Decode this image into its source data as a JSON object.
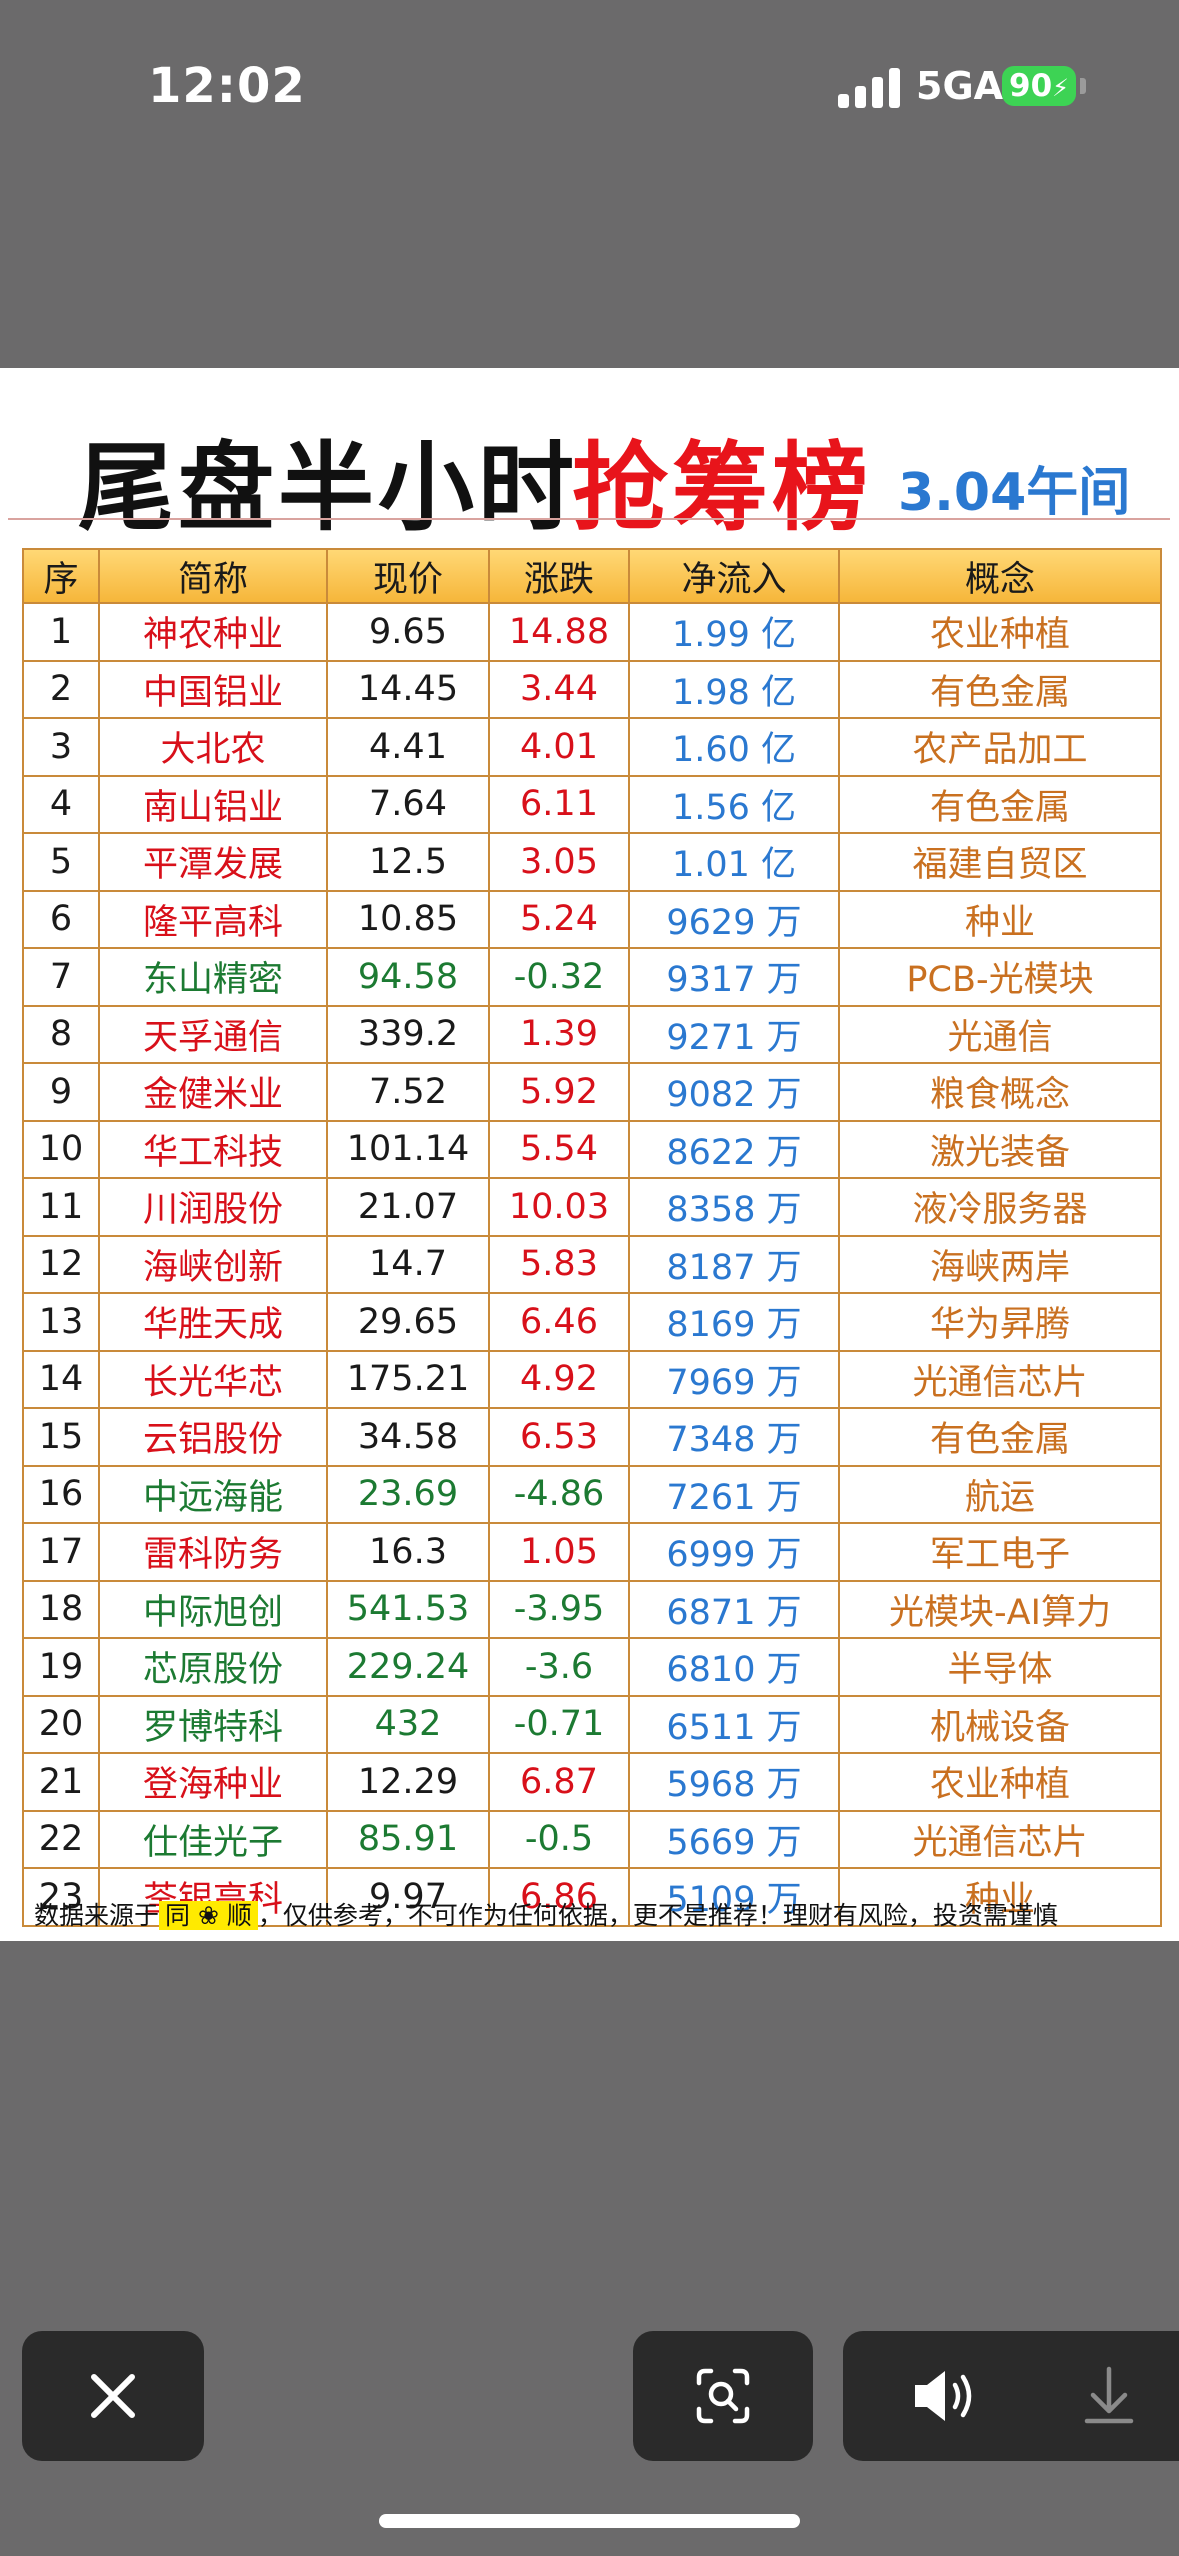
{
  "status_bar": {
    "time": "12:02",
    "network": "5GA",
    "battery": "90"
  },
  "image": {
    "title_part1": "尾盘半小时",
    "title_part2": "抢筹榜",
    "date": "3.04午间",
    "columns": [
      "序",
      "简称",
      "现价",
      "涨跌",
      "净流入",
      "概念"
    ],
    "rows": [
      {
        "idx": "1",
        "name": "神农种业",
        "price": "9.65",
        "change": "14.88",
        "flow": "1.99 亿",
        "concept": "农业种植",
        "up": true
      },
      {
        "idx": "2",
        "name": "中国铝业",
        "price": "14.45",
        "change": "3.44",
        "flow": "1.98 亿",
        "concept": "有色金属",
        "up": true
      },
      {
        "idx": "3",
        "name": "大北农",
        "price": "4.41",
        "change": "4.01",
        "flow": "1.60 亿",
        "concept": "农产品加工",
        "up": true
      },
      {
        "idx": "4",
        "name": "南山铝业",
        "price": "7.64",
        "change": "6.11",
        "flow": "1.56 亿",
        "concept": "有色金属",
        "up": true
      },
      {
        "idx": "5",
        "name": "平潭发展",
        "price": "12.5",
        "change": "3.05",
        "flow": "1.01 亿",
        "concept": "福建自贸区",
        "up": true
      },
      {
        "idx": "6",
        "name": "隆平高科",
        "price": "10.85",
        "change": "5.24",
        "flow": "9629 万",
        "concept": "种业",
        "up": true
      },
      {
        "idx": "7",
        "name": "东山精密",
        "price": "94.58",
        "change": "-0.32",
        "flow": "9317 万",
        "concept": "PCB-光模块",
        "up": false
      },
      {
        "idx": "8",
        "name": "天孚通信",
        "price": "339.2",
        "change": "1.39",
        "flow": "9271 万",
        "concept": "光通信",
        "up": true
      },
      {
        "idx": "9",
        "name": "金健米业",
        "price": "7.52",
        "change": "5.92",
        "flow": "9082 万",
        "concept": "粮食概念",
        "up": true
      },
      {
        "idx": "10",
        "name": "华工科技",
        "price": "101.14",
        "change": "5.54",
        "flow": "8622 万",
        "concept": "激光装备",
        "up": true
      },
      {
        "idx": "11",
        "name": "川润股份",
        "price": "21.07",
        "change": "10.03",
        "flow": "8358 万",
        "concept": "液冷服务器",
        "up": true
      },
      {
        "idx": "12",
        "name": "海峡创新",
        "price": "14.7",
        "change": "5.83",
        "flow": "8187 万",
        "concept": "海峡两岸",
        "up": true
      },
      {
        "idx": "13",
        "name": "华胜天成",
        "price": "29.65",
        "change": "6.46",
        "flow": "8169 万",
        "concept": "华为昇腾",
        "up": true
      },
      {
        "idx": "14",
        "name": "长光华芯",
        "price": "175.21",
        "change": "4.92",
        "flow": "7969 万",
        "concept": "光通信芯片",
        "up": true
      },
      {
        "idx": "15",
        "name": "云铝股份",
        "price": "34.58",
        "change": "6.53",
        "flow": "7348 万",
        "concept": "有色金属",
        "up": true
      },
      {
        "idx": "16",
        "name": "中远海能",
        "price": "23.69",
        "change": "-4.86",
        "flow": "7261 万",
        "concept": "航运",
        "up": false
      },
      {
        "idx": "17",
        "name": "雷科防务",
        "price": "16.3",
        "change": "1.05",
        "flow": "6999 万",
        "concept": "军工电子",
        "up": true
      },
      {
        "idx": "18",
        "name": "中际旭创",
        "price": "541.53",
        "change": "-3.95",
        "flow": "6871 万",
        "concept": "光模块-AI算力",
        "up": false
      },
      {
        "idx": "19",
        "name": "芯原股份",
        "price": "229.24",
        "change": "-3.6",
        "flow": "6810 万",
        "concept": "半导体",
        "up": false
      },
      {
        "idx": "20",
        "name": "罗博特科",
        "price": "432",
        "change": "-0.71",
        "flow": "6511 万",
        "concept": "机械设备",
        "up": false
      },
      {
        "idx": "21",
        "name": "登海种业",
        "price": "12.29",
        "change": "6.87",
        "flow": "5968 万",
        "concept": "农业种植",
        "up": true
      },
      {
        "idx": "22",
        "name": "仕佳光子",
        "price": "85.91",
        "change": "-0.5",
        "flow": "5669 万",
        "concept": "光通信芯片",
        "up": false
      },
      {
        "idx": "23",
        "name": "荃银高科",
        "price": "9.97",
        "change": "6.86",
        "flow": "5109 万",
        "concept": "种业",
        "up": true
      }
    ],
    "footnote_prefix": "数据来源于",
    "footnote_source": "同 ❀ 顺",
    "footnote_suffix": "，仅供参考，不可作为任何依据，更不是推荐！理财有风险，投资需谨慎"
  },
  "colors": {
    "up": "#d8101a",
    "down": "#1c7a32",
    "flow": "#2a78d0",
    "concept": "#c97020"
  },
  "icons": [
    "close-icon",
    "visual-lookup-icon",
    "speaker-icon",
    "download-icon"
  ]
}
